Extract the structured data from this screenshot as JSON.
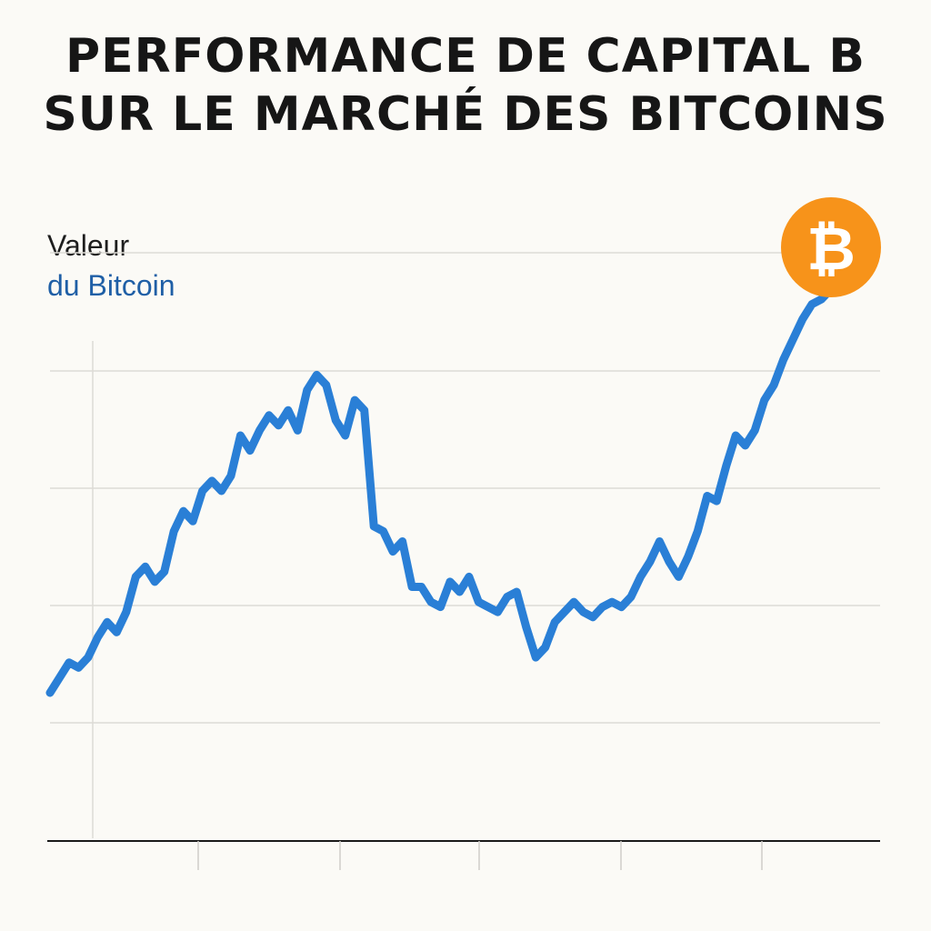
{
  "colors": {
    "background": "#fbfaf6",
    "line": "#2a7fd6",
    "grid": "#dddbd6",
    "axis": "#1a1a1a",
    "bitcoin_badge": "#f7931a"
  },
  "chart_data": {
    "type": "line",
    "title": [
      "PERFORMANCE DE CAPITAL B",
      "SUR LE MARCHÉ DES BITCOINS"
    ],
    "ylabel": [
      "Valeur",
      "du Bitcoin"
    ],
    "xlabel": "",
    "grid": "horizontal",
    "ylim": [
      0,
      100
    ],
    "icon": "bitcoin-icon",
    "badge_symbol": "₿",
    "series": [
      {
        "x": [
          0,
          1,
          2,
          3,
          4,
          5,
          6,
          7,
          8,
          9,
          10,
          11,
          12,
          13,
          14,
          15,
          16,
          17,
          18,
          19,
          20,
          21,
          22,
          23,
          24,
          25,
          26,
          27,
          28,
          29,
          30,
          31,
          32,
          33,
          34,
          35,
          36,
          37,
          38,
          39,
          40,
          41,
          42,
          43,
          44,
          45,
          46,
          47,
          48,
          49,
          50,
          51,
          52,
          53,
          54,
          55,
          56,
          57,
          58,
          59,
          60,
          61,
          62,
          63,
          64,
          65,
          66,
          67,
          68,
          69,
          70,
          71,
          72,
          73,
          74,
          75,
          76,
          77,
          78,
          79,
          80,
          81,
          82
        ],
        "values": [
          20,
          23,
          26,
          25,
          27,
          31,
          34,
          32,
          36,
          43,
          45,
          42,
          44,
          52,
          56,
          54,
          60,
          62,
          60,
          63,
          71,
          68,
          72,
          75,
          73,
          76,
          72,
          80,
          83,
          81,
          74,
          71,
          78,
          76,
          53,
          52,
          48,
          50,
          41,
          41,
          38,
          37,
          42,
          40,
          43,
          38,
          37,
          36,
          39,
          40,
          33,
          27,
          29,
          34,
          36,
          38,
          36,
          35,
          37,
          38,
          37,
          39,
          43,
          46,
          50,
          46,
          43,
          47,
          52,
          59,
          58,
          65,
          71,
          69,
          72,
          78,
          81,
          86,
          90,
          94,
          97,
          98,
          100
        ]
      }
    ]
  }
}
